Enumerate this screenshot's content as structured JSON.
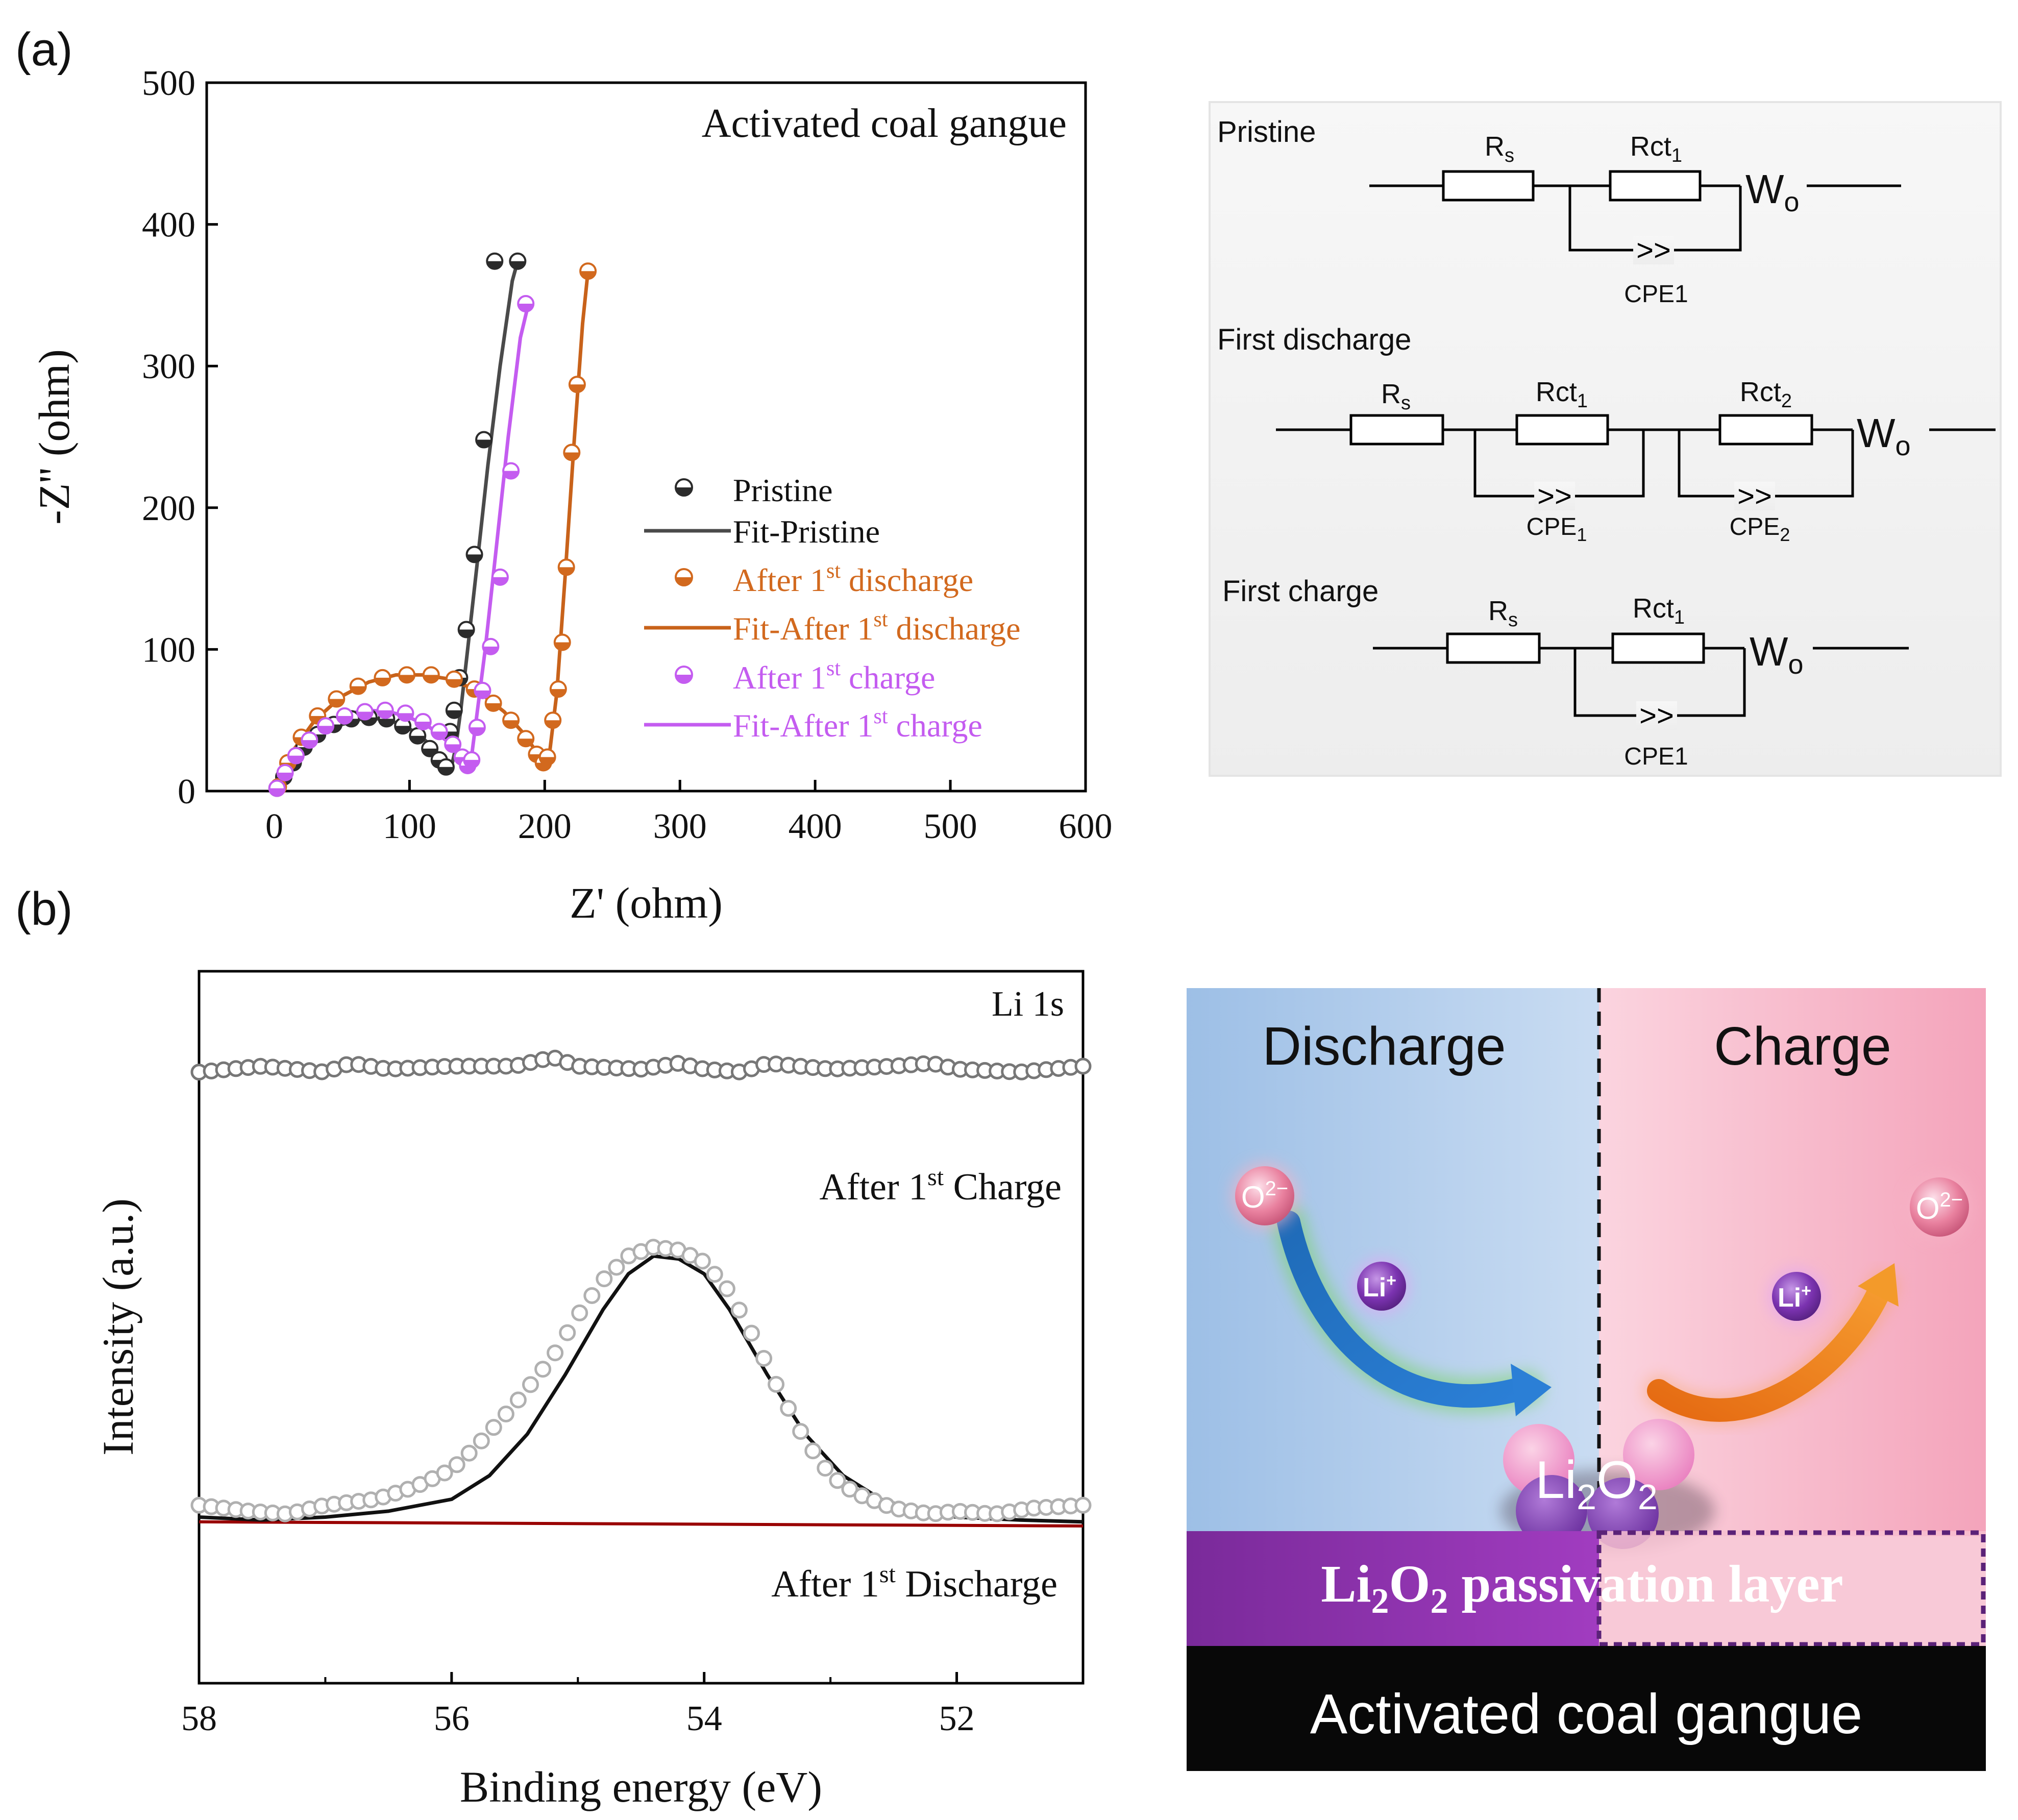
{
  "labels": {
    "panel_a": "(a)",
    "panel_b": "(b)"
  },
  "chart_data": [
    {
      "type": "scatter",
      "title": "Activated coal gangue",
      "xlabel": "Z' (ohm)",
      "ylabel": "-Z'' (ohm)",
      "xlim": [
        -50,
        600
      ],
      "ylim": [
        0,
        500
      ],
      "xticks": [
        "0",
        "100",
        "200",
        "300",
        "400",
        "500",
        "600"
      ],
      "yticks": [
        "0",
        "100",
        "200",
        "300",
        "400",
        "500"
      ],
      "legend_position": "center-right",
      "series": [
        {
          "name": "Pristine",
          "kind": "points",
          "color": "#2b2b2b",
          "x": [
            2,
            7,
            14,
            22,
            32,
            44,
            57,
            70,
            83,
            95,
            106,
            115,
            122,
            127,
            130,
            133,
            137,
            142,
            148,
            155,
            163,
            180
          ],
          "y": [
            2,
            10,
            20,
            31,
            40,
            47,
            51,
            52,
            51,
            46,
            39,
            30,
            22,
            17,
            42,
            57,
            80,
            114,
            167,
            248,
            374,
            374
          ]
        },
        {
          "name": "Fit-Pristine",
          "kind": "line",
          "color": "#4a4a4a",
          "x": [
            0,
            10,
            20,
            35,
            50,
            65,
            80,
            95,
            108,
            118,
            126,
            131,
            134,
            138,
            143,
            150,
            158,
            167,
            176,
            180
          ],
          "y": [
            0,
            15,
            28,
            40,
            47,
            51,
            51,
            47,
            39,
            30,
            21,
            17,
            30,
            58,
            100,
            160,
            230,
            300,
            360,
            374
          ]
        },
        {
          "name": "After 1st discharge",
          "kind": "points",
          "color": "#d2691e",
          "x": [
            3,
            10,
            20,
            32,
            46,
            62,
            80,
            98,
            116,
            133,
            148,
            162,
            175,
            186,
            194,
            199,
            202,
            206,
            210,
            213,
            216,
            220,
            224,
            232
          ],
          "y": [
            3,
            20,
            38,
            53,
            65,
            74,
            80,
            82,
            82,
            79,
            72,
            62,
            50,
            37,
            26,
            20,
            24,
            50,
            72,
            105,
            158,
            239,
            287,
            367
          ]
        },
        {
          "name": "Fit-After 1st discharge",
          "kind": "line",
          "color": "#c8621a",
          "x": [
            0,
            15,
            30,
            50,
            70,
            90,
            110,
            130,
            150,
            170,
            185,
            195,
            200,
            204,
            209,
            215,
            222,
            228,
            232
          ],
          "y": [
            0,
            30,
            50,
            67,
            77,
            82,
            82,
            79,
            71,
            56,
            40,
            26,
            20,
            30,
            70,
            150,
            250,
            330,
            367
          ]
        },
        {
          "name": "After 1st charge",
          "kind": "points",
          "color": "#c45cf0",
          "x": [
            2,
            8,
            16,
            26,
            38,
            52,
            67,
            82,
            97,
            110,
            122,
            132,
            139,
            143,
            146,
            150,
            154,
            160,
            167,
            175,
            186
          ],
          "y": [
            2,
            13,
            25,
            36,
            46,
            53,
            56,
            57,
            55,
            49,
            42,
            33,
            24,
            18,
            22,
            45,
            71,
            102,
            151,
            226,
            344
          ]
        },
        {
          "name": "Fit-After 1st charge",
          "kind": "line",
          "color": "#c45cf0",
          "x": [
            0,
            12,
            25,
            40,
            55,
            70,
            85,
            100,
            115,
            128,
            137,
            143,
            146,
            150,
            156,
            164,
            173,
            182,
            188
          ],
          "y": [
            0,
            20,
            36,
            48,
            55,
            57,
            56,
            52,
            45,
            35,
            25,
            18,
            25,
            55,
            100,
            170,
            250,
            320,
            344
          ]
        }
      ]
    },
    {
      "type": "line",
      "title": "Li 1s",
      "xlabel": "Binding energy (eV)",
      "ylabel": "Intensity (a.u.)",
      "xlim": [
        58,
        51
      ],
      "ylim": [
        0,
        1.2
      ],
      "xticks": [
        "58",
        "56",
        "54",
        "52"
      ],
      "annotations": [
        {
          "text": "After 1",
          "sup": "st",
          "rest": " Charge"
        },
        {
          "text": "After 1",
          "sup": "st",
          "rest": " Discharge"
        }
      ],
      "series": [
        {
          "name": "After 1st Charge (raw)",
          "color": "#777777",
          "x": [
            58,
            57.5,
            57,
            56.8,
            56.5,
            56,
            55.5,
            55.2,
            55,
            54.5,
            54.2,
            54,
            53.7,
            53.5,
            53,
            52.5,
            52.2,
            52,
            51.5,
            51
          ],
          "y": [
            1.03,
            1.04,
            1.03,
            1.045,
            1.035,
            1.04,
            1.04,
            1.055,
            1.04,
            1.035,
            1.045,
            1.035,
            1.03,
            1.045,
            1.035,
            1.04,
            1.045,
            1.035,
            1.03,
            1.04
          ]
        },
        {
          "name": "After 1st Discharge (raw)",
          "color": "#b0b0b0",
          "x": [
            58,
            57.6,
            57.3,
            57,
            56.6,
            56.3,
            56,
            55.8,
            55.5,
            55.2,
            55,
            54.8,
            54.6,
            54.4,
            54.2,
            54,
            53.8,
            53.6,
            53.4,
            53.2,
            53,
            52.8,
            52.5,
            52.2,
            52,
            51.7,
            51.4,
            51
          ],
          "y": [
            0.3,
            0.29,
            0.285,
            0.3,
            0.31,
            0.33,
            0.36,
            0.4,
            0.47,
            0.55,
            0.62,
            0.68,
            0.72,
            0.735,
            0.73,
            0.71,
            0.66,
            0.58,
            0.49,
            0.41,
            0.35,
            0.32,
            0.295,
            0.285,
            0.29,
            0.285,
            0.295,
            0.3
          ]
        },
        {
          "name": "Fit",
          "color": "#111111",
          "x": [
            58,
            57.5,
            57,
            56.5,
            56,
            55.7,
            55.4,
            55.1,
            54.8,
            54.6,
            54.4,
            54.2,
            54,
            53.8,
            53.5,
            53.2,
            52.9,
            52.6,
            52.3,
            52,
            51.5,
            51
          ],
          "y": [
            0.28,
            0.275,
            0.28,
            0.29,
            0.31,
            0.35,
            0.42,
            0.52,
            0.63,
            0.69,
            0.72,
            0.715,
            0.69,
            0.63,
            0.52,
            0.42,
            0.35,
            0.31,
            0.29,
            0.28,
            0.275,
            0.272
          ]
        },
        {
          "name": "Background",
          "color": "#990000",
          "x": [
            58,
            51
          ],
          "y": [
            0.272,
            0.265
          ]
        }
      ]
    }
  ],
  "circuits": {
    "pristine": {
      "title": "Pristine",
      "rs": "R",
      "rs_sub": "s",
      "rct": "Rct",
      "rct_sub": "1",
      "w": "W",
      "w_sub": "o",
      "cpe": "CPE1"
    },
    "discharge": {
      "title": "First discharge",
      "rs": "R",
      "rs_sub": "s",
      "rct1": "Rct",
      "rct1_sub": "1",
      "rct2": "Rct",
      "rct2_sub": "2",
      "w": "W",
      "w_sub": "o",
      "cpe1": "CPE",
      "cpe1_sub": "1",
      "cpe2": "CPE",
      "cpe2_sub": "2"
    },
    "charge": {
      "title": "First charge",
      "rs": "R",
      "rs_sub": "s",
      "rct": "Rct",
      "rct_sub": "1",
      "w": "W",
      "w_sub": "o",
      "cpe": "CPE1"
    }
  },
  "schematic": {
    "discharge": "Discharge",
    "charge": "Charge",
    "o2": "O",
    "o2_sup": "2−",
    "li": "Li",
    "li_sup": "+",
    "li2o2_a": "Li",
    "li2o2_b": "2",
    "li2o2_c": "O",
    "li2o2_d": "2",
    "layer_a": "Li",
    "layer_b": "2",
    "layer_c": "O",
    "layer_d": "2",
    "layer_e": " passivation layer",
    "substrate": "Activated coal gangue"
  }
}
